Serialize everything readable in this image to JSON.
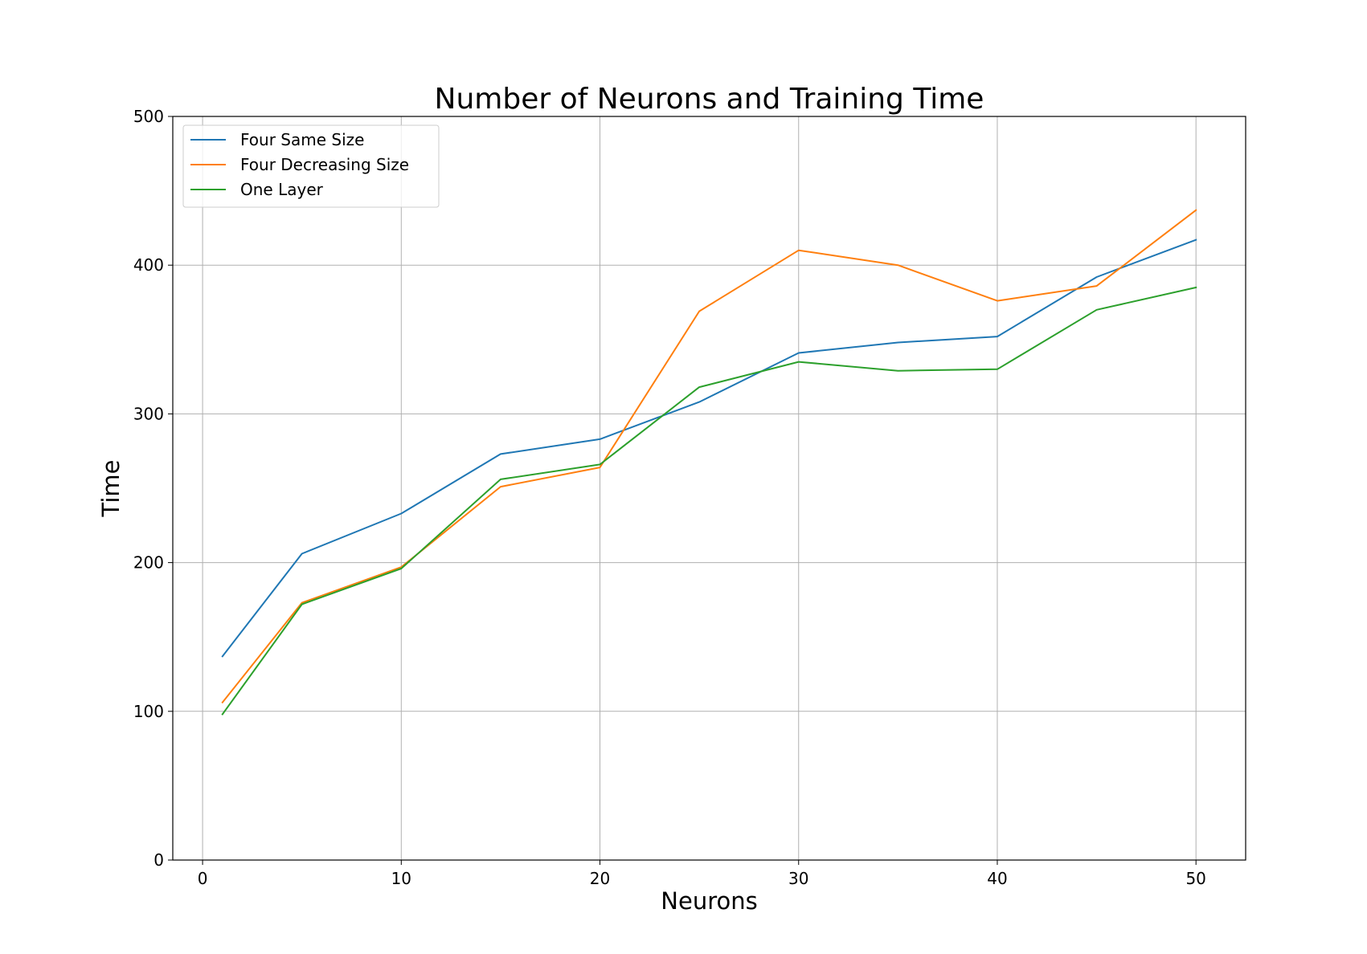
{
  "chart_data": {
    "type": "line",
    "title": "Number of Neurons and Training Time",
    "xlabel": "Neurons",
    "ylabel": "Time",
    "xlim": [
      -1.5,
      52.5
    ],
    "ylim": [
      0,
      500
    ],
    "xticks": [
      0,
      10,
      20,
      30,
      40,
      50
    ],
    "yticks": [
      0,
      100,
      200,
      300,
      400,
      500
    ],
    "grid": true,
    "legend_position": "top-left",
    "x": [
      1,
      5,
      10,
      15,
      20,
      25,
      30,
      35,
      40,
      45,
      50
    ],
    "series": [
      {
        "name": "Four Same Size",
        "color": "#1f77b4",
        "values": [
          137,
          206,
          233,
          273,
          283,
          308,
          341,
          348,
          352,
          392,
          417
        ]
      },
      {
        "name": "Four Decreasing Size",
        "color": "#ff7f0e",
        "values": [
          106,
          173,
          197,
          251,
          264,
          369,
          410,
          400,
          376,
          386,
          437
        ]
      },
      {
        "name": "One Layer",
        "color": "#2ca02c",
        "values": [
          98,
          172,
          196,
          256,
          266,
          318,
          335,
          329,
          330,
          370,
          385
        ]
      }
    ]
  }
}
